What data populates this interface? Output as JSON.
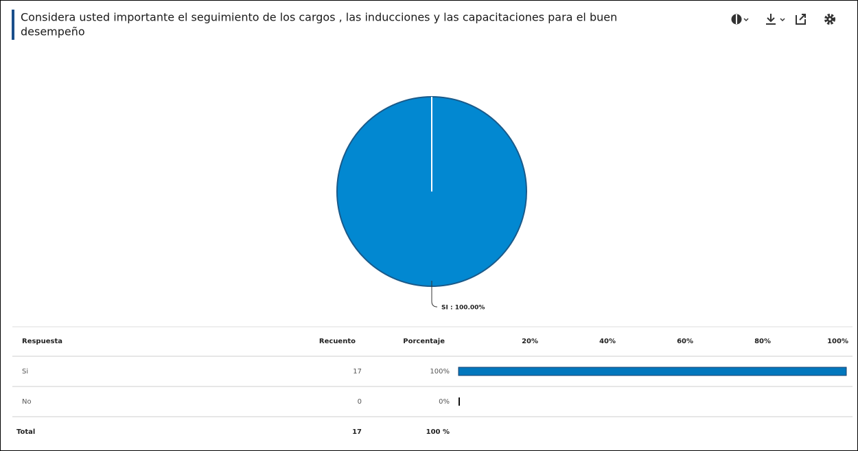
{
  "chart_data": {
    "type": "pie",
    "title": "Considera usted importante el seguimiento de los cargos , las inducciones y las capacitaciones para el buen",
    "title_line2": "desempeño",
    "categories": [
      "SI"
    ],
    "values": [
      100
    ],
    "value_labels": [
      "SI : 100.00%"
    ],
    "colors": [
      "#0288d1"
    ]
  },
  "table": {
    "headers": [
      "Respuesta",
      "Recuento",
      "Porcentaje"
    ],
    "scale_ticks": [
      {
        "value": 20,
        "label": "20%"
      },
      {
        "value": 40,
        "label": "40%"
      },
      {
        "value": 60,
        "label": "60%"
      },
      {
        "value": 80,
        "label": "80%"
      },
      {
        "value": 100,
        "label": "100%"
      }
    ],
    "scale_lim": [
      0,
      100
    ],
    "bar_color": "#0277bd",
    "rows": [
      {
        "answer": "Si",
        "count": 17,
        "percent": 100,
        "percent_label": "100%"
      },
      {
        "answer": "No",
        "count": 0,
        "percent": 0,
        "percent_label": "0%"
      }
    ],
    "total": {
      "label": "Total",
      "count": 17,
      "percent_label": "100 %"
    }
  }
}
